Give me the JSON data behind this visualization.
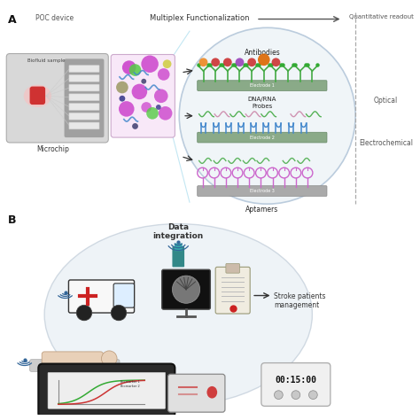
{
  "background_color": "#ffffff",
  "panel_A_label": "A",
  "panel_B_label": "B",
  "panel_A_title_left": "POC device",
  "panel_A_title_mid": "Multiplex Functionalization",
  "panel_A_title_right": "Quantitative readout",
  "label_microchip": "Microchip",
  "label_biofluid": "Biofluid sample",
  "label_antibodies": "Antibodies",
  "label_dna_rna": "DNA/RNA\nProbes",
  "label_aptamers": "Aptamers",
  "label_electrode1": "Electrode 1",
  "label_electrode2": "Electrode 2",
  "label_electrode3": "Electrode 3",
  "label_optical": "Optical",
  "label_electrochemical": "Electrochemical",
  "label_data_integration": "Data\nintegration",
  "label_stroke_patients": "Stroke patients\nmanagement",
  "label_time": "00:15:00",
  "arrow_color": "#444444",
  "dashed_line_color": "#aaaaaa",
  "ellipse_fill": "#eef5f8",
  "ellipse_edge": "#bbccdd",
  "electrode_color": "#8aaa88",
  "electrode3_color": "#c0c0c0"
}
